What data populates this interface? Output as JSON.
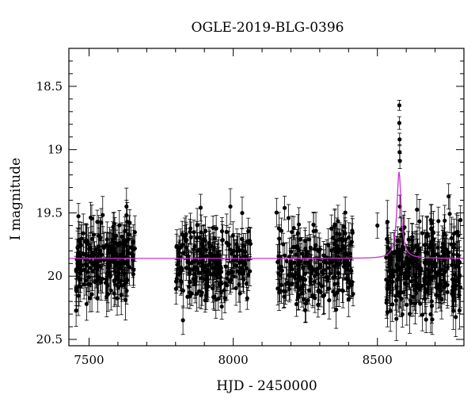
{
  "chart_data": {
    "type": "scatter",
    "title": "OGLE-2019-BLG-0396",
    "xlabel": "HJD - 2450000",
    "ylabel": "I magnitude",
    "xlim": [
      7430,
      8800
    ],
    "ylim": [
      20.55,
      18.2
    ],
    "y_inverted": true,
    "x_ticks": [
      7500,
      8000,
      8500
    ],
    "y_ticks": [
      18.5,
      19,
      19.5,
      20,
      20.5
    ],
    "x_minor_step": 100,
    "y_minor_step": 0.1,
    "grid": false,
    "colors": {
      "points": "#000000",
      "model": "#cc33cc"
    },
    "model": {
      "baseline": 19.86,
      "peak_time": 8575,
      "peak_mag": 19.18,
      "width_days": 9
    },
    "seasons": [
      {
        "start": 7455,
        "end": 7660,
        "n": 210,
        "mean": 19.88,
        "spread": 0.16,
        "err": 0.12
      },
      {
        "start": 7800,
        "end": 8060,
        "n": 230,
        "mean": 19.9,
        "spread": 0.15,
        "err": 0.11
      },
      {
        "start": 8150,
        "end": 8420,
        "n": 230,
        "mean": 19.92,
        "spread": 0.15,
        "err": 0.11
      },
      {
        "start": 8530,
        "end": 8790,
        "n": 300,
        "mean": 19.95,
        "spread": 0.17,
        "err": 0.13
      }
    ],
    "highlighted_points": [
      {
        "x": 8576,
        "y": 18.65,
        "err": 0.04
      },
      {
        "x": 8576,
        "y": 18.79,
        "err": 0.05
      },
      {
        "x": 8577,
        "y": 18.92,
        "err": 0.05
      },
      {
        "x": 8577,
        "y": 19.02,
        "err": 0.06
      },
      {
        "x": 8578,
        "y": 19.09,
        "err": 0.06
      },
      {
        "x": 8578,
        "y": 19.45,
        "err": 0.09
      },
      {
        "x": 8582,
        "y": 19.63,
        "err": 0.1
      },
      {
        "x": 8588,
        "y": 19.78,
        "err": 0.11
      },
      {
        "x": 8570,
        "y": 19.72,
        "err": 0.11
      },
      {
        "x": 8747,
        "y": 19.37,
        "err": 0.1
      },
      {
        "x": 8500,
        "y": 19.6,
        "err": 0.1
      }
    ]
  }
}
